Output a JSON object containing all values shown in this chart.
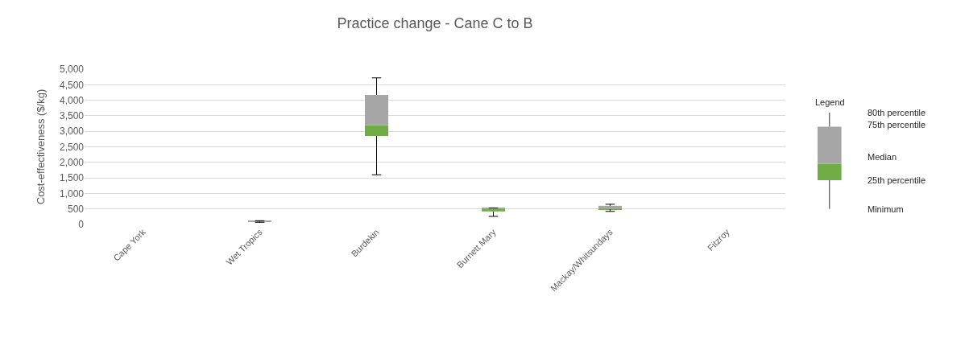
{
  "chart_data": {
    "type": "box",
    "title": "Practice change - Cane C to B",
    "ylabel": "Cost-effectiveness ($/kg)",
    "categories": [
      "Cape York",
      "Wet Tropics",
      "Burdekin",
      "Burnett Mary",
      "Mackay/Whitsundays",
      "Fitzroy"
    ],
    "boxes": [
      null,
      {
        "low": 70,
        "q1": 90,
        "median": 100,
        "q3": 110,
        "high": 120
      },
      {
        "low": 1600,
        "q1": 2850,
        "median": 3200,
        "q3": 4170,
        "high": 4720
      },
      {
        "low": 260,
        "q1": 420,
        "median": 510,
        "q3": 520,
        "high": 530
      },
      {
        "low": 420,
        "q1": 490,
        "median": 500,
        "q3": 600,
        "high": 650
      },
      null
    ],
    "color": "#a6a6a6",
    "colors": [
      null,
      "#70ad47",
      "#70ad47",
      "#70ad47",
      "#70ad47",
      null
    ],
    "ylim": [
      0,
      5000
    ],
    "yticks": [
      0,
      {
        "value": 500,
        "label": "500"
      },
      {
        "value": 1000,
        "label": "1,000"
      },
      {
        "value": 1500,
        "label": "1,500"
      },
      {
        "value": 2000,
        "label": "2,000"
      },
      {
        "value": 2500,
        "label": "2,500"
      },
      {
        "value": 3000,
        "label": "3,000"
      },
      {
        "value": 3500,
        "label": "3,500"
      },
      {
        "value": 4000,
        "label": "4,000"
      },
      {
        "value": 4500,
        "label": "4,500"
      },
      {
        "value": 5000,
        "label": "5,000"
      }
    ],
    "grid": "y",
    "annotations": [
      "Legend",
      "80th percentile",
      "75th percentile",
      "Median",
      "25th percentile",
      "Minimum"
    ]
  }
}
